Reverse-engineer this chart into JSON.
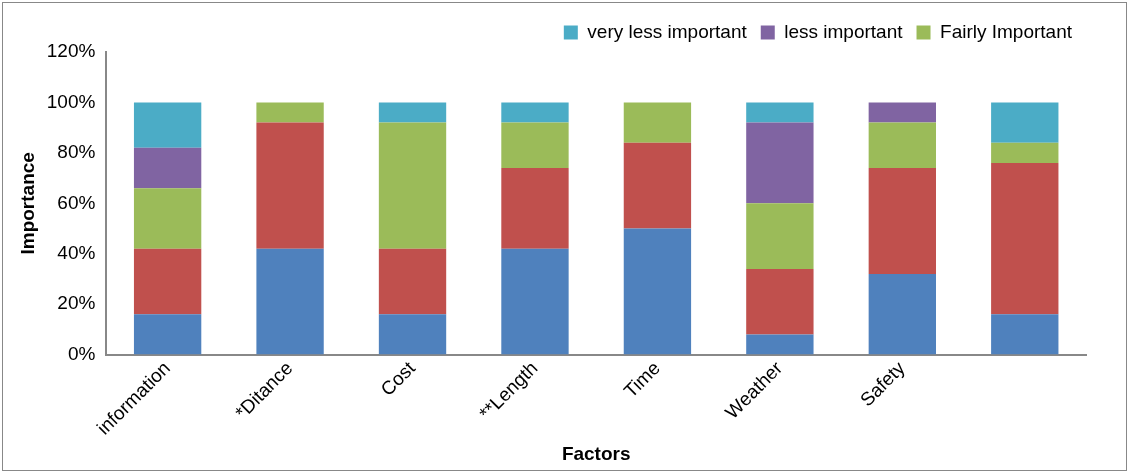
{
  "chart_data": {
    "type": "bar",
    "stacked": true,
    "xlabel": "Factors",
    "ylabel": "Importance",
    "categories": [
      "information",
      "*Ditance",
      "Cost",
      "**Length",
      "Time",
      "Weather",
      "Safety",
      null
    ],
    "series": [
      {
        "color": "#4f81bd",
        "values": [
          16,
          42,
          16,
          42,
          50,
          8,
          32,
          16
        ]
      },
      {
        "color": "#c0504d",
        "values": [
          26,
          50,
          26,
          32,
          34,
          26,
          42,
          60
        ]
      },
      {
        "name": "Fairly Important",
        "color": "#9bbb59",
        "values": [
          24,
          8,
          50,
          18,
          16,
          26,
          18,
          8
        ]
      },
      {
        "name": "less important",
        "color": "#8064a2",
        "values": [
          16,
          0,
          0,
          0,
          0,
          32,
          8,
          0
        ]
      },
      {
        "name": "very less important",
        "color": "#4bacc6",
        "values": [
          18,
          0,
          8,
          8,
          0,
          8,
          0,
          16
        ]
      }
    ],
    "ylim": [
      0,
      120
    ],
    "yticks": [
      {
        "value": 0,
        "label": "0%"
      },
      {
        "value": 20,
        "label": "20%"
      },
      {
        "value": 40,
        "label": "40%"
      },
      {
        "value": 60,
        "label": "60%"
      },
      {
        "value": 80,
        "label": "80%"
      },
      {
        "value": 100,
        "label": "100%"
      },
      {
        "value": 120,
        "label": "120%"
      }
    ],
    "grid": false,
    "legend": "top"
  }
}
